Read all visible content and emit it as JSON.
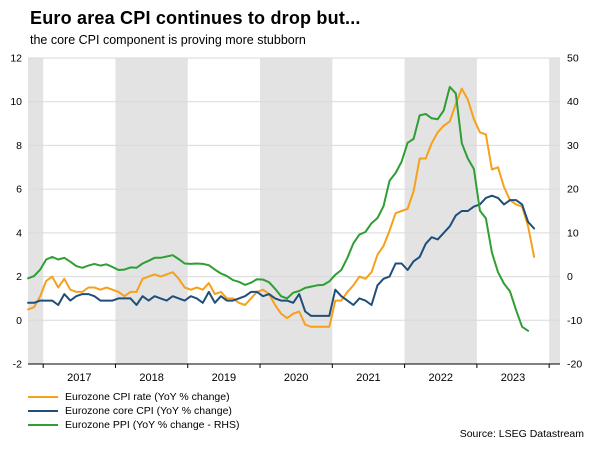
{
  "chart_data": {
    "type": "line",
    "title": "Euro area CPI continues to drop but...",
    "subtitle": "the core CPI component is proving more stubborn",
    "source": "Source: LSEG Datastream",
    "legend_position": "bottom-left",
    "grid": "horizontal",
    "x_domain": [
      2016.79,
      2024.15
    ],
    "left_ylim": [
      -2,
      12
    ],
    "right_ylim": [
      -20,
      50
    ],
    "left_ticks": [
      -2,
      0,
      2,
      4,
      6,
      8,
      10,
      12
    ],
    "right_ticks": [
      -20,
      -10,
      0,
      10,
      20,
      30,
      40,
      50
    ],
    "x_tick_years": [
      2017,
      2018,
      2019,
      2020,
      2021,
      2022,
      2023
    ],
    "year_boundaries": [
      2017,
      2018,
      2019,
      2020,
      2021,
      2022,
      2023,
      2024
    ],
    "shaded_bands": [
      [
        2016.79,
        2017
      ],
      [
        2018,
        2019
      ],
      [
        2020,
        2021
      ],
      [
        2022,
        2023
      ],
      [
        2024,
        2024.15
      ]
    ],
    "colors": {
      "band": "#E3E3E3",
      "grid": "#DADADA",
      "axis": "#000000",
      "background": "#FFFFFF"
    },
    "series": [
      {
        "id": "cpi-rate",
        "name": "Eurozone CPI rate (YoY % change)",
        "axis": "left",
        "color": "#F6A01B",
        "start": "2016-10",
        "frequency": "monthly",
        "values": [
          0.5,
          0.6,
          1.1,
          1.8,
          2.0,
          1.5,
          1.9,
          1.4,
          1.3,
          1.3,
          1.5,
          1.5,
          1.4,
          1.5,
          1.4,
          1.3,
          1.1,
          1.3,
          1.3,
          1.9,
          2.0,
          2.1,
          2.0,
          2.1,
          2.2,
          1.9,
          1.5,
          1.4,
          1.5,
          1.4,
          1.7,
          1.2,
          1.3,
          1.0,
          1.0,
          0.8,
          0.7,
          1.0,
          1.3,
          1.4,
          1.2,
          0.7,
          0.3,
          0.1,
          0.3,
          0.4,
          -0.2,
          -0.3,
          -0.3,
          -0.3,
          -0.3,
          0.9,
          0.9,
          1.3,
          1.6,
          2.0,
          1.9,
          2.2,
          3.0,
          3.4,
          4.1,
          4.9,
          5.0,
          5.1,
          5.9,
          7.4,
          7.4,
          8.1,
          8.6,
          8.9,
          9.1,
          9.9,
          10.6,
          10.1,
          9.2,
          8.6,
          8.5,
          6.9,
          7.0,
          6.1,
          5.5,
          5.3,
          5.2,
          4.3,
          2.9
        ]
      },
      {
        "id": "core-cpi",
        "name": "Eurozone core CPI (YoY % change)",
        "axis": "left",
        "color": "#1F4E79",
        "start": "2016-10",
        "frequency": "monthly",
        "values": [
          0.8,
          0.8,
          0.9,
          0.9,
          0.9,
          0.7,
          1.2,
          0.9,
          1.1,
          1.2,
          1.2,
          1.1,
          0.9,
          0.9,
          0.9,
          1.0,
          1.0,
          1.0,
          0.7,
          1.1,
          0.9,
          1.1,
          1.0,
          0.9,
          1.1,
          1.0,
          0.9,
          1.1,
          1.0,
          0.8,
          1.3,
          0.8,
          1.1,
          0.9,
          0.9,
          1.0,
          1.1,
          1.3,
          1.3,
          1.1,
          1.2,
          1.0,
          0.9,
          0.9,
          0.8,
          1.2,
          0.4,
          0.2,
          0.2,
          0.2,
          0.2,
          1.4,
          1.1,
          0.9,
          0.7,
          1.0,
          0.9,
          0.7,
          1.6,
          1.9,
          2.0,
          2.6,
          2.6,
          2.3,
          2.7,
          2.9,
          3.5,
          3.8,
          3.7,
          4.0,
          4.3,
          4.8,
          5.0,
          5.0,
          5.2,
          5.3,
          5.6,
          5.7,
          5.6,
          5.3,
          5.5,
          5.5,
          5.3,
          4.5,
          4.2
        ]
      },
      {
        "id": "ppi",
        "name": "Eurozone PPI (YoY % change - RHS)",
        "axis": "right",
        "color": "#2F9E33",
        "start": "2016-10",
        "frequency": "monthly",
        "values": [
          -0.4,
          0.1,
          1.6,
          3.9,
          4.5,
          3.9,
          4.3,
          3.4,
          2.4,
          2.0,
          2.5,
          2.9,
          2.5,
          2.8,
          2.2,
          1.5,
          1.6,
          2.1,
          2.0,
          3.0,
          3.6,
          4.3,
          4.3,
          4.6,
          4.9,
          4.0,
          3.0,
          2.9,
          3.0,
          2.9,
          2.6,
          1.6,
          0.7,
          0.1,
          -0.8,
          -1.2,
          -1.9,
          -1.4,
          -0.6,
          -0.7,
          -1.3,
          -2.8,
          -4.5,
          -5.0,
          -3.7,
          -3.3,
          -2.6,
          -2.3,
          -2.0,
          -1.9,
          -1.1,
          0.4,
          1.5,
          4.3,
          7.6,
          9.6,
          10.2,
          12.2,
          13.4,
          16.1,
          21.9,
          23.7,
          26.3,
          30.6,
          31.5,
          36.9,
          37.2,
          36.2,
          36.0,
          38.0,
          43.4,
          41.9,
          30.5,
          27.0,
          24.6,
          15.1,
          13.3,
          5.5,
          1.0,
          -1.6,
          -3.4,
          -7.6,
          -11.5,
          -12.4
        ]
      }
    ]
  }
}
